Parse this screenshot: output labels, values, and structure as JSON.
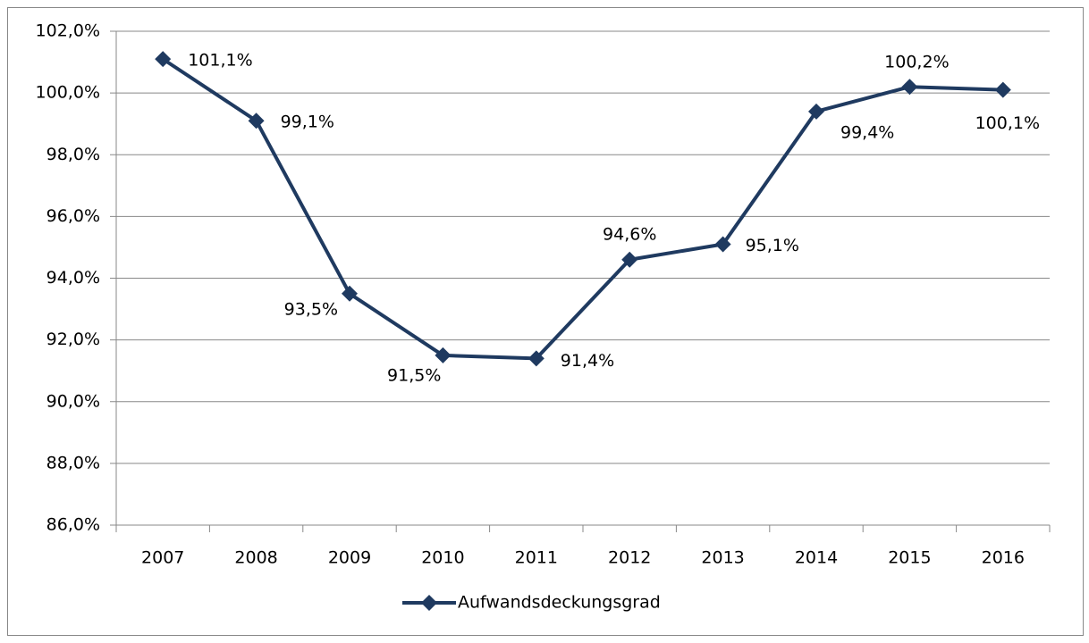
{
  "chart_data": {
    "type": "line",
    "categories": [
      "2007",
      "2008",
      "2009",
      "2010",
      "2011",
      "2012",
      "2013",
      "2014",
      "2015",
      "2016"
    ],
    "series": [
      {
        "name": "Aufwandsdeckungsgrad",
        "color": "#1f3a60",
        "values": [
          101.1,
          99.1,
          93.5,
          91.5,
          91.4,
          94.6,
          95.1,
          99.4,
          100.2,
          100.1
        ],
        "value_labels": [
          "101,1%",
          "99,1%",
          "93,5%",
          "91,5%",
          "91,4%",
          "94,6%",
          "95,1%",
          "99,4%",
          "100,2%",
          "100,1%"
        ]
      }
    ],
    "ylim": [
      86,
      102
    ],
    "yticks": [
      {
        "value": 86,
        "label": "86,0%"
      },
      {
        "value": 88,
        "label": "88,0%"
      },
      {
        "value": 90,
        "label": "90,0%"
      },
      {
        "value": 92,
        "label": "92,0%"
      },
      {
        "value": 94,
        "label": "94,0%"
      },
      {
        "value": 96,
        "label": "96,0%"
      },
      {
        "value": 98,
        "label": "98,0%"
      },
      {
        "value": 100,
        "label": "100,0%"
      },
      {
        "value": 102,
        "label": "102,0%"
      }
    ],
    "grid": true,
    "legend": "bottom"
  }
}
